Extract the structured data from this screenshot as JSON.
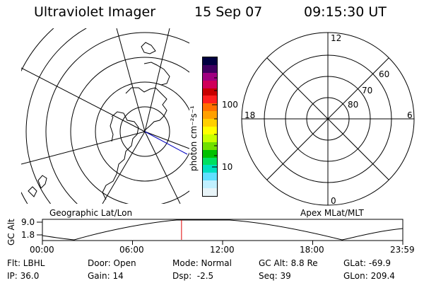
{
  "header": {
    "instrument": "Ultraviolet Imager",
    "date": "15 Sep 07",
    "time": "09:15:30 UT"
  },
  "colorbar": {
    "unit_label": "photon cm⁻²s⁻¹",
    "ticks": [
      "100",
      "10"
    ],
    "colors": [
      "#000040",
      "#400060",
      "#a00080",
      "#d0005a",
      "#c80000",
      "#ff2020",
      "#ff7000",
      "#ffa000",
      "#ffd000",
      "#ffff00",
      "#c8ff00",
      "#70e000",
      "#00c000",
      "#00e060",
      "#00e0c0",
      "#60e0ff",
      "#c0f0ff",
      "#e8f4f8"
    ]
  },
  "left_map": {
    "label": "Geographic Lat/Lon",
    "colors": {
      "ring": "#000000",
      "track": "#0000c0"
    }
  },
  "right_dial": {
    "label": "Apex MLat/MLT",
    "mlt_labels": {
      "top": "12",
      "left": "18",
      "right": "6",
      "bottom": "0"
    },
    "lat_labels": [
      "60",
      "70",
      "80"
    ]
  },
  "timeline": {
    "y_axis_label": "GC Alt",
    "y_ticks": [
      "9.0",
      "1.8"
    ],
    "x_ticks": [
      "00:00",
      "06:00",
      "12:00",
      "18:00",
      "23:59"
    ],
    "current_time_fraction": 0.386,
    "marker_color": "#e00000"
  },
  "status": {
    "row1": {
      "filter": "Flt: LBHL",
      "door": "Door: Open",
      "mode": "Mode: Normal",
      "gc_alt": "GC Alt: 8.8 Re",
      "glat": "GLat: -69.9"
    },
    "row2": {
      "ip": "IP: 36.0",
      "gain": "Gain: 14",
      "dsp": "Dsp:  -2.5",
      "seq": "Seq: 39",
      "glon": "GLon: 209.4"
    }
  }
}
